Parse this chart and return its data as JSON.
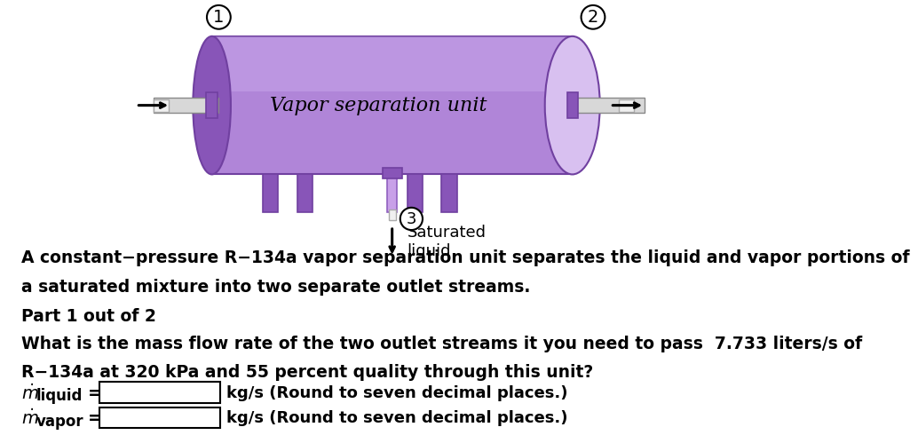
{
  "bg_color": "#ffffff",
  "vessel_color": "#b085d8",
  "vessel_grad_top": "#c8a0f0",
  "vessel_dark": "#8855b8",
  "vessel_light": "#d8c0f0",
  "vessel_edge": "#7040a0",
  "leg_color": "#b085d8",
  "leg_edge": "#7040a0",
  "pipe_fill": "#d8d8d8",
  "pipe_edge": "#888888",
  "vessel_label": "Vapor separation unit",
  "node1_label": "1",
  "node2_label": "2",
  "node3_label": "3",
  "sat_liquid_label": "Saturated\nliquid",
  "text_lines": [
    "A constant−pressure R−134a vapor separation unit separates the liquid and vapor portions of",
    "a saturated mixture into two separate outlet streams.",
    "Part 1 out of 2",
    "What is the mass flow rate of the two outlet streams it you need to pass  7.733 liters/s of",
    "R−134a at 320 kPa and 55 percent quality through this unit?"
  ],
  "input_label1": "kg/s (Round to seven decimal places.)",
  "input_label2": "kg/s (Round to seven decimal places.)"
}
